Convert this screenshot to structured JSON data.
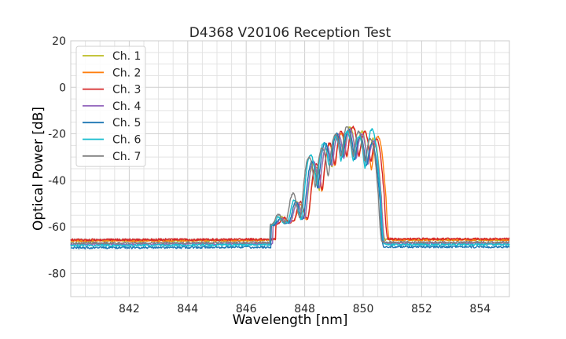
{
  "chart_data": {
    "type": "line",
    "title": "D4368 V20106 Reception Test",
    "xlabel": "Wavelength [nm]",
    "ylabel": "Optical Power [dB]",
    "xlim": [
      840,
      855
    ],
    "ylim": [
      -90,
      20
    ],
    "x_ticks": [
      842,
      844,
      846,
      848,
      850,
      852,
      854
    ],
    "y_ticks": [
      20,
      0,
      -20,
      -40,
      -60,
      -80
    ],
    "x_minor_step": 0.5,
    "y_minor_step": 5,
    "grid": true,
    "legend_position": "top-left",
    "series": [
      {
        "name": "Ch. 1",
        "color": "#bcbd22",
        "baseline": -66.0,
        "peaks": [
          [
            847.2,
            -59
          ],
          [
            847.75,
            -50
          ],
          [
            848.3,
            -33
          ],
          [
            848.75,
            -25
          ],
          [
            849.15,
            -20
          ],
          [
            849.55,
            -17
          ],
          [
            849.95,
            -19
          ],
          [
            850.35,
            -22
          ]
        ]
      },
      {
        "name": "Ch. 2",
        "color": "#ff7f0e",
        "baseline": -66.0,
        "peaks": [
          [
            847.3,
            -60
          ],
          [
            847.85,
            -51
          ],
          [
            848.4,
            -34
          ],
          [
            848.85,
            -25
          ],
          [
            849.25,
            -20
          ],
          [
            849.65,
            -17
          ],
          [
            850.05,
            -19
          ],
          [
            850.5,
            -21
          ]
        ]
      },
      {
        "name": "Ch. 3",
        "color": "#d62728",
        "baseline": -65.6,
        "peaks": [
          [
            847.3,
            -60
          ],
          [
            847.85,
            -50
          ],
          [
            848.4,
            -33
          ],
          [
            848.85,
            -24
          ],
          [
            849.25,
            -19
          ],
          [
            849.65,
            -17
          ],
          [
            850.05,
            -19
          ],
          [
            850.45,
            -22
          ]
        ]
      },
      {
        "name": "Ch. 4",
        "color": "#9467bd",
        "baseline": -67.5,
        "peaks": [
          [
            847.2,
            -60
          ],
          [
            847.75,
            -50
          ],
          [
            848.3,
            -32
          ],
          [
            848.75,
            -25
          ],
          [
            849.15,
            -20
          ],
          [
            849.55,
            -18
          ],
          [
            849.95,
            -20
          ],
          [
            850.35,
            -23
          ]
        ]
      },
      {
        "name": "Ch. 5",
        "color": "#1f77b4",
        "baseline": -69.0,
        "peaks": [
          [
            847.15,
            -60
          ],
          [
            847.7,
            -50
          ],
          [
            848.25,
            -32
          ],
          [
            848.7,
            -24
          ],
          [
            849.1,
            -20
          ],
          [
            849.5,
            -18
          ],
          [
            849.9,
            -21
          ],
          [
            850.3,
            -24
          ]
        ]
      },
      {
        "name": "Ch. 6",
        "color": "#17becf",
        "baseline": -68.0,
        "peaks": [
          [
            847.1,
            -59
          ],
          [
            847.65,
            -49
          ],
          [
            848.2,
            -29
          ],
          [
            848.65,
            -24
          ],
          [
            849.05,
            -21
          ],
          [
            849.45,
            -19
          ],
          [
            849.85,
            -21
          ],
          [
            850.3,
            -18
          ]
        ]
      },
      {
        "name": "Ch. 7",
        "color": "#7f7f7f",
        "baseline": -67.0,
        "peaks": [
          [
            847.1,
            -57
          ],
          [
            847.6,
            -46
          ],
          [
            848.15,
            -30
          ],
          [
            848.6,
            -26
          ],
          [
            849.05,
            -20
          ],
          [
            849.45,
            -17
          ],
          [
            849.85,
            -19
          ],
          [
            850.25,
            -22
          ]
        ]
      }
    ]
  }
}
